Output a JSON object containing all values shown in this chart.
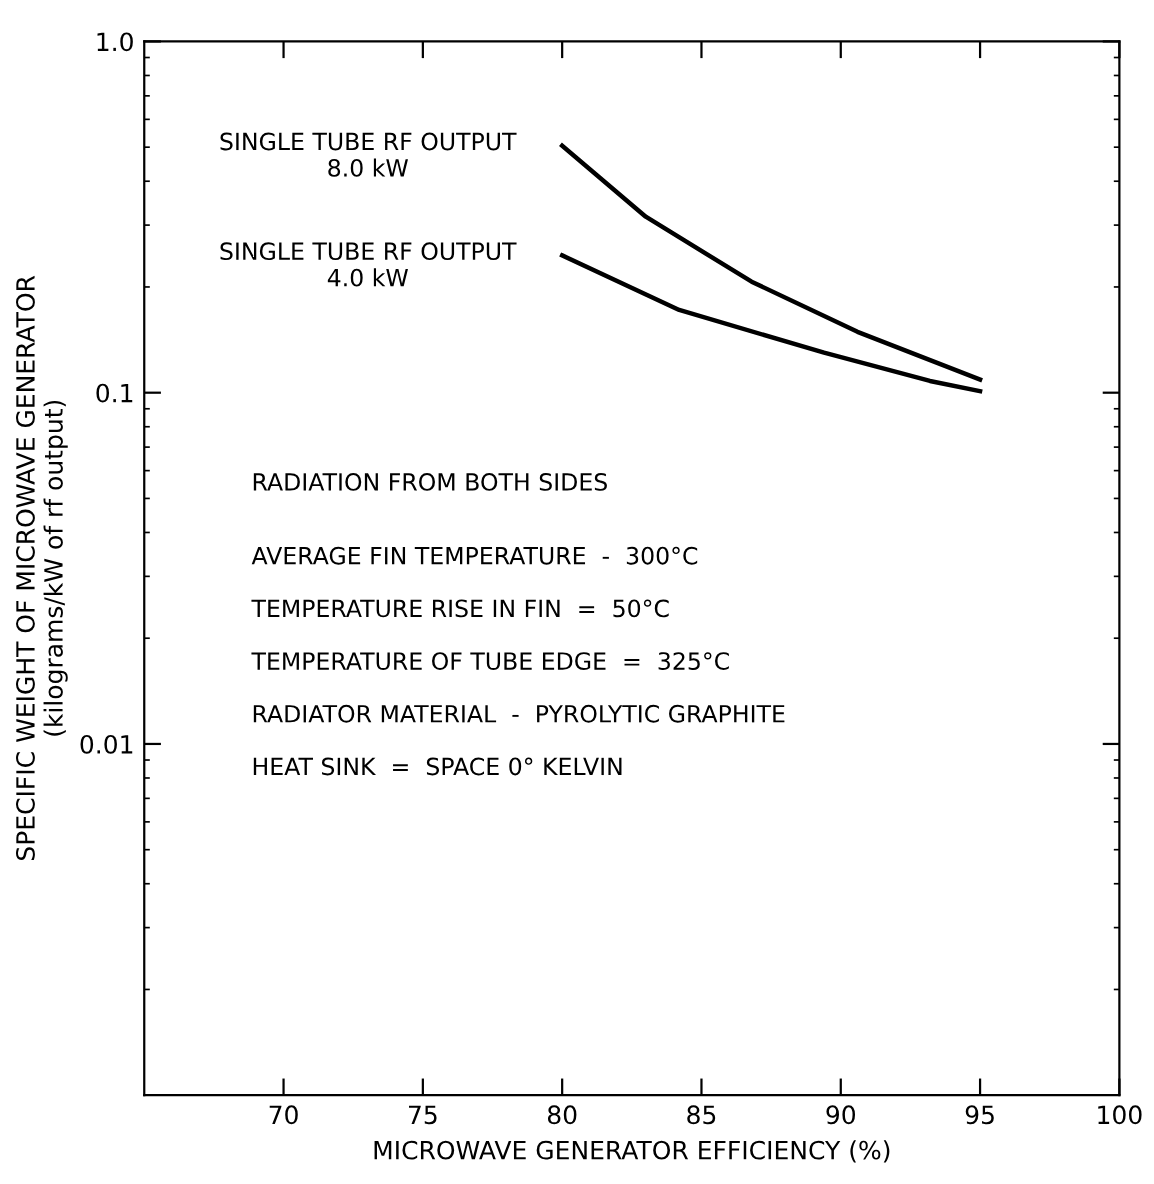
{
  "chart_data": {
    "type": "line",
    "xlabel": "MICROWAVE GENERATOR EFFICIENCY (%)",
    "ylabel": "SPECIFIC WEIGHT OF MICROWAVE GENERATOR\n(kilograms/kW of rf output)",
    "series": [
      {
        "name": "SINGLE TUBE RF OUTPUT\n8.0 kW",
        "color": "#000000",
        "x": [
          80,
          83.0,
          86.8,
          90.6,
          95
        ],
        "values": [
          0.505,
          0.317,
          0.207,
          0.149,
          0.109
        ]
      },
      {
        "name": "SINGLE TUBE RF OUTPUT\n4.0 kW",
        "color": "#000000",
        "x": [
          80,
          84.2,
          89.4,
          93.2,
          95
        ],
        "values": [
          0.246,
          0.172,
          0.13,
          0.108,
          0.101
        ]
      }
    ],
    "annotations": [
      "RADIATION FROM BOTH SIDES",
      "AVERAGE FIN TEMPERATURE  -  300°C",
      "TEMPERATURE RISE IN FIN  =  50°C",
      "TEMPERATURE OF TUBE EDGE  =  325°C",
      "RADIATOR MATERIAL  -  PYROLYTIC GRAPHITE",
      "HEAT SINK  =  SPACE 0° KELVIN"
    ],
    "log": "y",
    "xlim": [
      65,
      100
    ],
    "xticks": [
      70,
      75,
      80,
      85,
      90,
      95,
      100
    ],
    "ylim": [
      0.001,
      1.0
    ],
    "yticks": [
      {
        "value": 0.01,
        "label": "0.01"
      },
      {
        "value": 0.1,
        "label": "0.1"
      },
      {
        "value": 1.0,
        "label": "1.0"
      }
    ],
    "grid": false,
    "legend": false,
    "marker": "none",
    "line_style": "solid"
  }
}
